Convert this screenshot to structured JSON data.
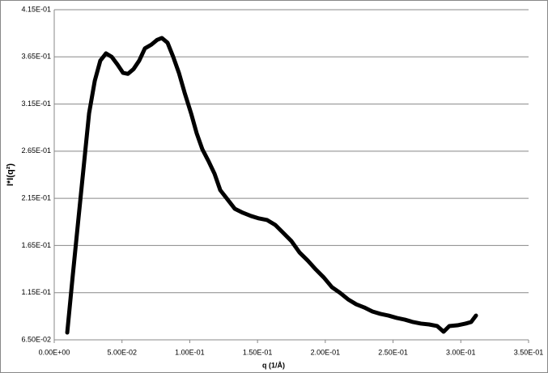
{
  "chart_data": {
    "type": "line",
    "x_label": "q (1/Å)",
    "y_label": "I*I(q²)",
    "x": [
      0.0096,
      0.0137,
      0.0179,
      0.0221,
      0.0257,
      0.0299,
      0.034,
      0.0382,
      0.0424,
      0.0466,
      0.0508,
      0.0544,
      0.0585,
      0.0627,
      0.0669,
      0.0717,
      0.0759,
      0.0794,
      0.0836,
      0.0878,
      0.092,
      0.0962,
      0.101,
      0.1051,
      0.1093,
      0.1141,
      0.1183,
      0.1225,
      0.1272,
      0.1332,
      0.1392,
      0.1452,
      0.1511,
      0.1571,
      0.1631,
      0.1691,
      0.175,
      0.181,
      0.187,
      0.193,
      0.1989,
      0.2049,
      0.2109,
      0.2168,
      0.2228,
      0.2288,
      0.2348,
      0.2407,
      0.2467,
      0.2527,
      0.2587,
      0.2646,
      0.2706,
      0.2766,
      0.2826,
      0.2873,
      0.2915,
      0.2975,
      0.3035,
      0.3076,
      0.3112
    ],
    "series": [
      {
        "color": "#000000",
        "values": [
          0.0727,
          0.1336,
          0.194,
          0.2537,
          0.305,
          0.3395,
          0.361,
          0.3687,
          0.365,
          0.357,
          0.348,
          0.347,
          0.352,
          0.361,
          0.374,
          0.378,
          0.383,
          0.385,
          0.38,
          0.365,
          0.348,
          0.327,
          0.305,
          0.284,
          0.267,
          0.2537,
          0.241,
          0.2237,
          0.2151,
          0.204,
          0.1997,
          0.1963,
          0.1937,
          0.192,
          0.1868,
          0.1782,
          0.1697,
          0.1576,
          0.1491,
          0.1396,
          0.1311,
          0.1208,
          0.1148,
          0.1079,
          0.1027,
          0.0993,
          0.095,
          0.0925,
          0.0907,
          0.0882,
          0.0864,
          0.0839,
          0.0822,
          0.0813,
          0.0796,
          0.0736,
          0.0796,
          0.0804,
          0.0822,
          0.0839,
          0.0907
        ]
      }
    ],
    "xlim": [
      0,
      0.35
    ],
    "xticks": [
      {
        "value": 0,
        "label": "0.00E+00"
      },
      {
        "value": 0.05,
        "label": "5.00E-02"
      },
      {
        "value": 0.1,
        "label": "1.00E-01"
      },
      {
        "value": 0.15,
        "label": "1.50E-01"
      },
      {
        "value": 0.2,
        "label": "2.00E-01"
      },
      {
        "value": 0.25,
        "label": "2.50E-01"
      },
      {
        "value": 0.3,
        "label": "3.00E-01"
      },
      {
        "value": 0.35,
        "label": "3.50E-01"
      }
    ],
    "ylim": [
      0.065,
      0.415
    ],
    "yticks": [
      {
        "value": 0.065,
        "label": "6.50E-02"
      },
      {
        "value": 0.115,
        "label": "1.15E-01"
      },
      {
        "value": 0.165,
        "label": "1.65E-01"
      },
      {
        "value": 0.215,
        "label": "2.15E-01"
      },
      {
        "value": 0.265,
        "label": "2.65E-01"
      },
      {
        "value": 0.315,
        "label": "3.15E-01"
      },
      {
        "value": 0.365,
        "label": "3.65E-01"
      },
      {
        "value": 0.415,
        "label": "4.15E-01"
      }
    ],
    "grid": true
  }
}
